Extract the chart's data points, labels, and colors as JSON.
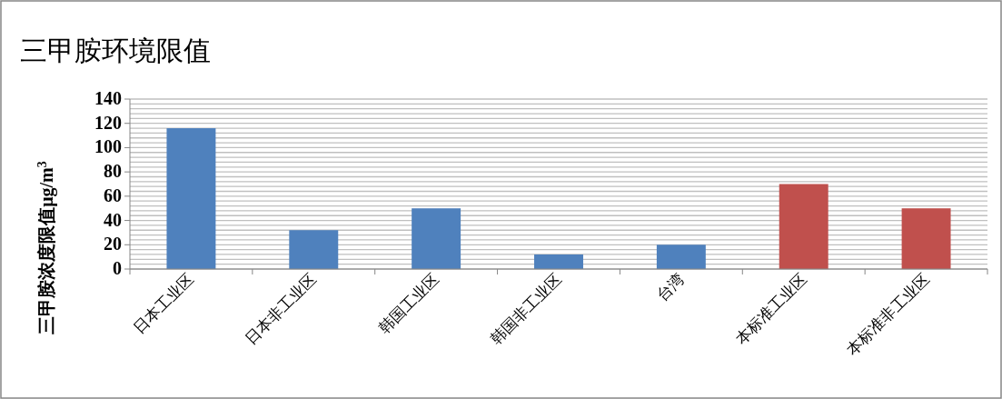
{
  "chart_data": {
    "type": "bar",
    "title": "三甲胺环境限值",
    "ylabel": "三甲胺浓度限值μg/m$^{3}$",
    "categories": [
      "日本工业区",
      "日本非工业区",
      "韩国工业区",
      "韩国非工业区",
      "台湾",
      "本标准工业区",
      "本标准非工业区"
    ],
    "values": [
      116,
      32,
      50,
      12,
      20,
      70,
      50
    ],
    "colors": [
      "#4f81bd",
      "#4f81bd",
      "#4f81bd",
      "#4f81bd",
      "#4f81bd",
      "#c0504d",
      "#c0504d"
    ],
    "ylim": [
      0,
      140
    ],
    "yticks": [
      0,
      {
        "value": 4,
        "label": null
      },
      {
        "value": 8,
        "label": null
      },
      {
        "value": 12,
        "label": null
      },
      {
        "value": 16,
        "label": null
      },
      20,
      {
        "value": 24,
        "label": null
      },
      {
        "value": 28,
        "label": null
      },
      {
        "value": 32,
        "label": null
      },
      {
        "value": 36,
        "label": null
      },
      40,
      {
        "value": 44,
        "label": null
      },
      {
        "value": 48,
        "label": null
      },
      {
        "value": 52,
        "label": null
      },
      {
        "value": 56,
        "label": null
      },
      60,
      {
        "value": 64,
        "label": null
      },
      {
        "value": 68,
        "label": null
      },
      {
        "value": 72,
        "label": null
      },
      {
        "value": 76,
        "label": null
      },
      80,
      {
        "value": 84,
        "label": null
      },
      {
        "value": 88,
        "label": null
      },
      {
        "value": 92,
        "label": null
      },
      {
        "value": 96,
        "label": null
      },
      100,
      {
        "value": 104,
        "label": null
      },
      {
        "value": 108,
        "label": null
      },
      {
        "value": 112,
        "label": null
      },
      {
        "value": 116,
        "label": null
      },
      120,
      {
        "value": 124,
        "label": null
      },
      {
        "value": 128,
        "label": null
      },
      {
        "value": 132,
        "label": null
      },
      {
        "value": 136,
        "label": null
      },
      140
    ],
    "grid": "y"
  }
}
